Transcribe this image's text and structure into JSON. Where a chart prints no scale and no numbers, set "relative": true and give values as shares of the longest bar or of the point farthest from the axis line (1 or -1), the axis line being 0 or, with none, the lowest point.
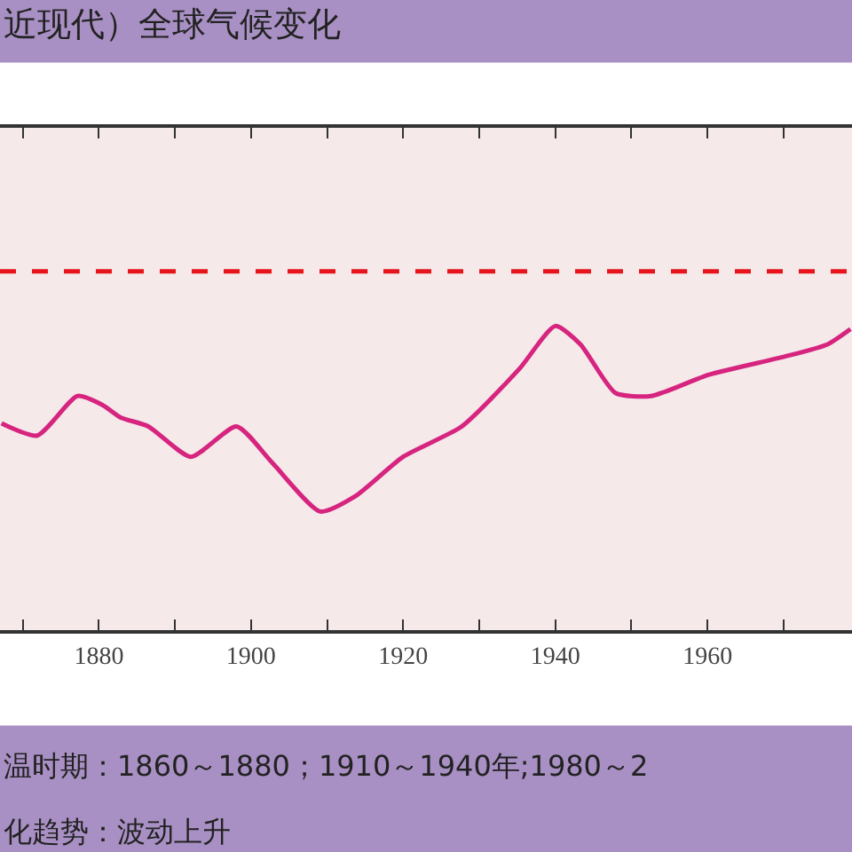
{
  "chart_data": {
    "type": "line",
    "title": "近现代）全球气候变化",
    "relative": true,
    "x": [
      1867.2,
      1871.9,
      1877.2,
      1880.5,
      1882.8,
      1886.5,
      1892.1,
      1898.1,
      1902.8,
      1909.1,
      1913.7,
      1920,
      1927.7,
      1935.3,
      1940,
      1943.3,
      1947.9,
      1952.6,
      1960.2,
      1970.2,
      1975.8,
      1978.8
    ],
    "series": [
      {
        "color": "#d6247f",
        "values": [
          0.68,
          0.64,
          0.77,
          0.74,
          0.7,
          0.67,
          0.57,
          0.67,
          0.55,
          0.39,
          0.44,
          0.57,
          0.67,
          0.86,
          1.0,
          0.94,
          0.78,
          0.77,
          0.84,
          0.9,
          0.94,
          0.99
        ]
      }
    ],
    "xlim": [
      1867,
      1979
    ],
    "xticks": [
      {
        "value": 1870,
        "label": null
      },
      1880,
      {
        "value": 1890,
        "label": null
      },
      1900,
      {
        "value": 1910,
        "label": null
      },
      1920,
      {
        "value": 1930,
        "label": null
      },
      1940,
      {
        "value": 1950,
        "label": null
      },
      1960,
      {
        "value": 1970,
        "label": null
      }
    ],
    "ref_lines": [
      {
        "axis": "y",
        "value": 1.18,
        "color": "#e8141c",
        "line_style": "dashed"
      }
    ],
    "annotations": [
      "温时期：1860～1880；1910～1940年;1980～2",
      "化趋势：波动上升"
    ],
    "grid": false,
    "marker": "none",
    "line_style": "solid"
  }
}
